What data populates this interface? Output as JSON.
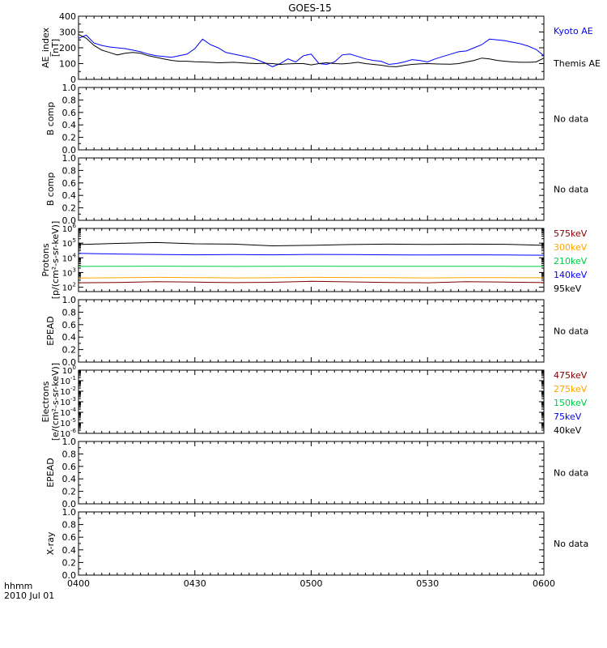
{
  "title": "GOES-15",
  "x_axis": {
    "ticks": [
      "0400",
      "0430",
      "0500",
      "0530",
      "0600"
    ],
    "label_line1": "hhmm",
    "label_line2": "2010 Jul 01"
  },
  "chart_data": [
    {
      "type": "line",
      "panel": "ae-index",
      "ylabel_line1": "AE_index",
      "ylabel_line2": "[nT]",
      "ylim": [
        0,
        400
      ],
      "yticks": [
        "0",
        "100",
        "200",
        "300",
        "400"
      ],
      "x_range": [
        0,
        120
      ],
      "series": [
        {
          "name": "Kyoto AE",
          "color": "#0000ff",
          "x": [
            0,
            2,
            4,
            6,
            8,
            10,
            12,
            14,
            16,
            18,
            20,
            22,
            24,
            26,
            28,
            30,
            32,
            34,
            36,
            38,
            40,
            42,
            44,
            46,
            48,
            50,
            52,
            54,
            56,
            58,
            60,
            62,
            64,
            66,
            68,
            70,
            72,
            74,
            76,
            78,
            80,
            82,
            84,
            86,
            88,
            90,
            92,
            94,
            96,
            98,
            100,
            102,
            104,
            106,
            108,
            110,
            112,
            114,
            116,
            118,
            120
          ],
          "values": [
            260,
            280,
            230,
            215,
            205,
            200,
            195,
            185,
            175,
            160,
            150,
            145,
            140,
            150,
            160,
            195,
            255,
            220,
            200,
            170,
            160,
            150,
            140,
            125,
            105,
            80,
            100,
            130,
            110,
            150,
            160,
            100,
            95,
            110,
            155,
            160,
            145,
            130,
            120,
            115,
            95,
            100,
            110,
            125,
            120,
            110,
            130,
            145,
            160,
            175,
            180,
            200,
            220,
            255,
            250,
            245,
            235,
            225,
            210,
            190,
            150
          ]
        },
        {
          "name": "Themis AE",
          "color": "#000000",
          "x": [
            0,
            2,
            4,
            6,
            8,
            10,
            12,
            14,
            16,
            18,
            20,
            22,
            24,
            26,
            28,
            30,
            32,
            34,
            36,
            38,
            40,
            42,
            44,
            46,
            48,
            50,
            52,
            54,
            56,
            58,
            60,
            62,
            64,
            66,
            68,
            70,
            72,
            74,
            76,
            78,
            80,
            82,
            84,
            86,
            88,
            90,
            92,
            94,
            96,
            98,
            100,
            102,
            104,
            106,
            108,
            110,
            112,
            114,
            116,
            118,
            120
          ],
          "values": [
            285,
            260,
            215,
            185,
            170,
            155,
            165,
            170,
            165,
            150,
            140,
            130,
            120,
            115,
            115,
            112,
            110,
            108,
            105,
            106,
            108,
            105,
            102,
            100,
            102,
            100,
            95,
            98,
            100,
            100,
            92,
            100,
            105,
            100,
            98,
            102,
            108,
            100,
            95,
            90,
            82,
            80,
            88,
            95,
            98,
            100,
            98,
            97,
            96,
            100,
            110,
            120,
            135,
            130,
            120,
            115,
            110,
            108,
            108,
            110,
            135
          ]
        }
      ]
    },
    {
      "type": "line",
      "panel": "b-comp-1",
      "ylabel_line1": "B comp",
      "ylim": [
        0,
        1
      ],
      "yticks": [
        "0.0",
        "0.2",
        "0.4",
        "0.6",
        "0.8",
        "1.0"
      ],
      "note": "No data",
      "series": []
    },
    {
      "type": "line",
      "panel": "b-comp-2",
      "ylabel_line1": "B comp",
      "ylim": [
        0,
        1
      ],
      "yticks": [
        "0.0",
        "0.2",
        "0.4",
        "0.6",
        "0.8",
        "1.0"
      ],
      "note": "No data",
      "series": []
    },
    {
      "type": "line",
      "panel": "protons",
      "ylabel_line1": "Protons",
      "ylabel_line2": "[p/(cm²-s-sr-keV)]",
      "log_y": true,
      "ylim_exp": [
        1.7,
        6
      ],
      "ytick_exps": [
        2,
        3,
        4,
        5,
        6
      ],
      "x_range": [
        0,
        120
      ],
      "series": [
        {
          "name": "575keV",
          "color": "#800000",
          "x": [
            0,
            10,
            20,
            30,
            40,
            50,
            60,
            70,
            80,
            90,
            100,
            110,
            120
          ],
          "values": [
            200,
            210,
            240,
            220,
            205,
            215,
            250,
            230,
            210,
            200,
            235,
            220,
            205
          ]
        },
        {
          "name": "300keV",
          "color": "#ffa500",
          "x": [
            0,
            10,
            20,
            30,
            40,
            50,
            60,
            70,
            80,
            90,
            100,
            110,
            120
          ],
          "values": [
            420,
            440,
            470,
            450,
            430,
            440,
            470,
            455,
            445,
            430,
            450,
            445,
            440
          ]
        },
        {
          "name": "210keV",
          "color": "#00cc44",
          "x": [
            0,
            10,
            20,
            30,
            40,
            50,
            60,
            70,
            80,
            90,
            100,
            110,
            120
          ],
          "values": [
            2600,
            2650,
            2700,
            2650,
            2600,
            2650,
            2700,
            2680,
            2650,
            2620,
            2650,
            2640,
            2600
          ]
        },
        {
          "name": "140keV",
          "color": "#0000ff",
          "x": [
            0,
            10,
            20,
            30,
            40,
            50,
            60,
            70,
            80,
            90,
            100,
            110,
            120
          ],
          "values": [
            20000,
            18000,
            17000,
            16000,
            16500,
            16000,
            17000,
            16500,
            16000,
            15500,
            16000,
            15500,
            15000
          ]
        },
        {
          "name": "95keV",
          "color": "#000000",
          "x": [
            0,
            10,
            20,
            30,
            40,
            50,
            60,
            70,
            80,
            90,
            100,
            110,
            120
          ],
          "values": [
            80000,
            95000,
            110000,
            90000,
            85000,
            65000,
            70000,
            80000,
            85000,
            82000,
            85000,
            83000,
            70000
          ]
        }
      ]
    },
    {
      "type": "line",
      "panel": "epead-1",
      "ylabel_line1": "EPEAD",
      "ylim": [
        0,
        1
      ],
      "yticks": [
        "0.0",
        "0.2",
        "0.4",
        "0.6",
        "0.8",
        "1.0"
      ],
      "note": "No data",
      "series": []
    },
    {
      "type": "line",
      "panel": "electrons",
      "ylabel_line1": "Electrons",
      "ylabel_line2": "[e/(cm²-s-sr-keV)]",
      "log_y": true,
      "ylim_exp": [
        -6,
        0
      ],
      "ytick_exps": [
        0,
        -1,
        -2,
        -3,
        -4,
        -5,
        -6
      ],
      "series": [
        {
          "name": "475keV",
          "color": "#800000",
          "values": []
        },
        {
          "name": "275keV",
          "color": "#ffa500",
          "values": []
        },
        {
          "name": "150keV",
          "color": "#00cc44",
          "values": []
        },
        {
          "name": "75keV",
          "color": "#0000ff",
          "values": []
        },
        {
          "name": "40keV",
          "color": "#000000",
          "values": []
        }
      ]
    },
    {
      "type": "line",
      "panel": "epead-2",
      "ylabel_line1": "EPEAD",
      "ylim": [
        0,
        1
      ],
      "yticks": [
        "0.0",
        "0.2",
        "0.4",
        "0.6",
        "0.8",
        "1.0"
      ],
      "note": "No data",
      "series": []
    },
    {
      "type": "line",
      "panel": "x-ray",
      "ylabel_line1": "X-ray",
      "ylim": [
        0,
        1
      ],
      "yticks": [
        "0.0",
        "0.2",
        "0.4",
        "0.6",
        "0.8",
        "1.0"
      ],
      "note": "No data",
      "series": []
    }
  ]
}
